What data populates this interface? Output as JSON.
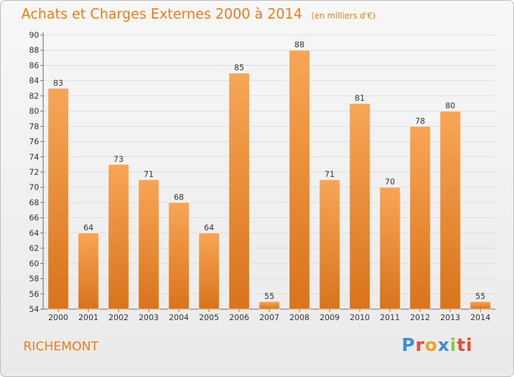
{
  "title": "Achats et Charges Externes 2000 à 2014",
  "subtitle": "(en milliers d'€)",
  "place": "RICHEMONT",
  "logo": [
    "P",
    "r",
    "o",
    "x",
    "i",
    "ti"
  ],
  "colors": {
    "bar_light": "#f7a656",
    "bar_dark": "#d9731c",
    "accent": "#ef7d1a",
    "grid": "#dddddd"
  },
  "chart_data": {
    "type": "bar",
    "categories": [
      "2000",
      "2001",
      "2002",
      "2003",
      "2004",
      "2005",
      "2006",
      "2007",
      "2008",
      "2009",
      "2010",
      "2011",
      "2012",
      "2013",
      "2014"
    ],
    "values": [
      83,
      64,
      73,
      71,
      68,
      64,
      85,
      55,
      88,
      71,
      81,
      70,
      78,
      80,
      55
    ],
    "ylim": [
      54,
      90
    ],
    "yticks": [
      54,
      56,
      58,
      60,
      62,
      64,
      66,
      68,
      70,
      72,
      74,
      76,
      78,
      80,
      82,
      84,
      86,
      88,
      90
    ],
    "grid": true
  }
}
